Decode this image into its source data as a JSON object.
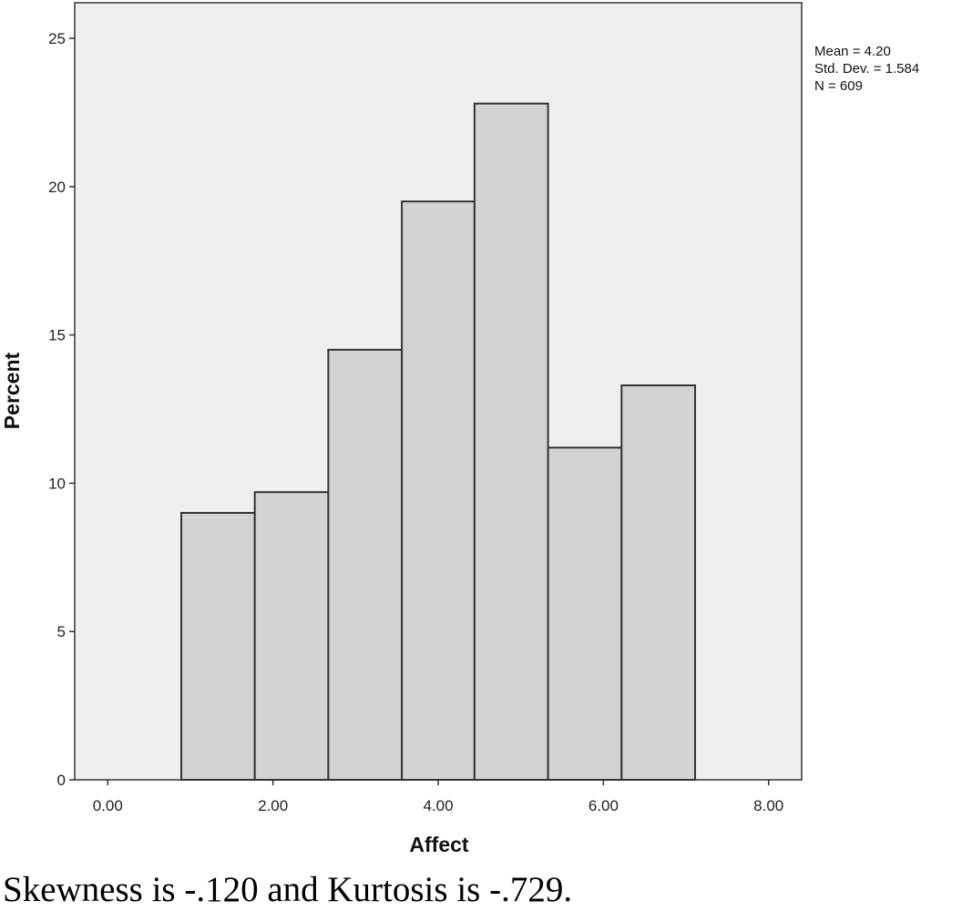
{
  "chart_data": {
    "type": "bar",
    "subtype": "histogram",
    "xlabel": "Affect",
    "ylabel": "Percent",
    "xlim": [
      -0.4,
      8.4
    ],
    "ylim": [
      0,
      26.2
    ],
    "x_ticks": [
      0,
      2,
      4,
      6,
      8
    ],
    "x_tick_labels": [
      "0.00",
      "2.00",
      "4.00",
      "6.00",
      "8.00"
    ],
    "y_ticks": [
      0,
      5,
      10,
      15,
      20,
      25
    ],
    "y_tick_labels": [
      "0",
      "5",
      "10",
      "15",
      "20",
      "25"
    ],
    "bins": [
      {
        "from": 0.89,
        "to": 1.78,
        "value": 9.0
      },
      {
        "from": 1.78,
        "to": 2.67,
        "value": 9.7
      },
      {
        "from": 2.67,
        "to": 3.56,
        "value": 14.5
      },
      {
        "from": 3.56,
        "to": 4.44,
        "value": 19.5
      },
      {
        "from": 4.44,
        "to": 5.33,
        "value": 22.8
      },
      {
        "from": 5.33,
        "to": 6.22,
        "value": 11.2
      },
      {
        "from": 6.22,
        "to": 7.11,
        "value": 13.3
      }
    ],
    "stats": [
      "Mean = 4.20",
      "Std. Dev. = 1.584",
      "N = 609"
    ],
    "colors": {
      "plot_bg": "#efefef",
      "bar_fill": "#d3d3d3",
      "bar_stroke": "#333333"
    }
  },
  "caption": "Skewness is -.120 and Kurtosis is -.729."
}
